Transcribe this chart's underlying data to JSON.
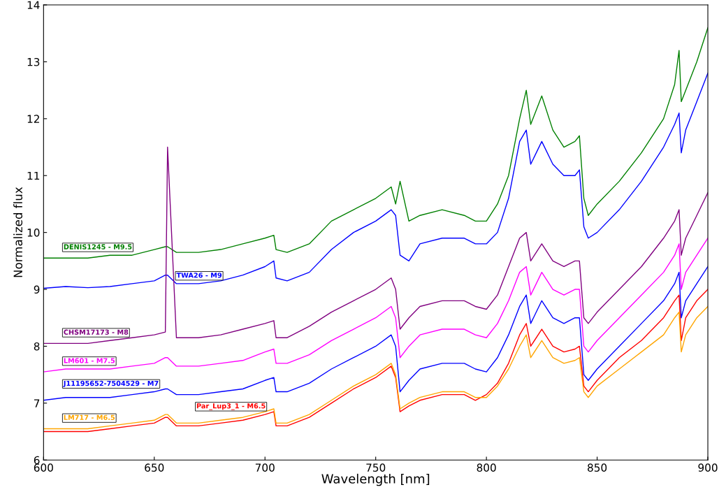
{
  "chart_data": {
    "type": "line",
    "xlabel": "Wavelength [nm]",
    "ylabel": "Normalized flux",
    "x": [
      600,
      610,
      620,
      630,
      640,
      650,
      655,
      656,
      660,
      670,
      680,
      690,
      700,
      704,
      705,
      710,
      720,
      730,
      740,
      750,
      757,
      759,
      761,
      765,
      770,
      780,
      790,
      795,
      800,
      805,
      810,
      815,
      818,
      820,
      825,
      830,
      835,
      840,
      842,
      844,
      846,
      850,
      860,
      870,
      880,
      885,
      887,
      888,
      890,
      895,
      900
    ],
    "xlim": [
      600,
      900
    ],
    "ylim": [
      6,
      14
    ],
    "xticks": [
      600,
      650,
      700,
      750,
      800,
      850,
      900
    ],
    "yticks": [
      6,
      7,
      8,
      9,
      10,
      11,
      12,
      13,
      14
    ],
    "grid": false,
    "legend": false,
    "marker": "none",
    "line_style": "solid",
    "series": [
      {
        "name": "DENIS1245 - M9.5",
        "color": "#008000",
        "values": [
          9.55,
          9.55,
          9.55,
          9.6,
          9.6,
          9.7,
          9.75,
          9.75,
          9.65,
          9.65,
          9.7,
          9.8,
          9.9,
          9.95,
          9.7,
          9.65,
          9.8,
          10.2,
          10.4,
          10.6,
          10.8,
          10.5,
          10.9,
          10.2,
          10.3,
          10.4,
          10.3,
          10.2,
          10.2,
          10.5,
          11.0,
          12.0,
          12.5,
          11.9,
          12.4,
          11.8,
          11.5,
          11.6,
          11.7,
          10.6,
          10.3,
          10.5,
          10.9,
          11.4,
          12.0,
          12.6,
          13.2,
          12.3,
          12.5,
          13.0,
          13.6
        ]
      },
      {
        "name": "TWA26 - M9",
        "color": "#0000ff",
        "values": [
          9.02,
          9.05,
          9.03,
          9.05,
          9.1,
          9.15,
          9.25,
          9.25,
          9.1,
          9.1,
          9.15,
          9.25,
          9.4,
          9.5,
          9.2,
          9.15,
          9.3,
          9.7,
          10.0,
          10.2,
          10.4,
          10.3,
          9.6,
          9.5,
          9.8,
          9.9,
          9.9,
          9.8,
          9.8,
          10.0,
          10.6,
          11.6,
          11.8,
          11.2,
          11.6,
          11.2,
          11.0,
          11.0,
          11.1,
          10.1,
          9.9,
          10.0,
          10.4,
          10.9,
          11.5,
          11.9,
          12.1,
          11.4,
          11.8,
          12.3,
          12.8
        ]
      },
      {
        "name": "CHSM17173 - M8",
        "color": "#800080",
        "values": [
          8.05,
          8.05,
          8.05,
          8.1,
          8.15,
          8.2,
          8.25,
          11.5,
          8.15,
          8.15,
          8.2,
          8.3,
          8.4,
          8.45,
          8.15,
          8.15,
          8.35,
          8.6,
          8.8,
          9.0,
          9.2,
          9.0,
          8.3,
          8.5,
          8.7,
          8.8,
          8.8,
          8.7,
          8.65,
          8.9,
          9.4,
          9.9,
          10.0,
          9.5,
          9.8,
          9.5,
          9.4,
          9.5,
          9.5,
          8.5,
          8.4,
          8.6,
          9.0,
          9.4,
          9.9,
          10.2,
          10.4,
          9.6,
          9.9,
          10.3,
          10.7
        ]
      },
      {
        "name": "LM601 - M7.5",
        "color": "#ff00ff",
        "values": [
          7.55,
          7.6,
          7.6,
          7.6,
          7.65,
          7.7,
          7.8,
          7.8,
          7.65,
          7.65,
          7.7,
          7.75,
          7.9,
          7.95,
          7.7,
          7.7,
          7.85,
          8.1,
          8.3,
          8.5,
          8.7,
          8.5,
          7.8,
          8.0,
          8.2,
          8.3,
          8.3,
          8.2,
          8.15,
          8.4,
          8.8,
          9.3,
          9.4,
          8.9,
          9.3,
          9.0,
          8.9,
          9.0,
          9.0,
          8.0,
          7.9,
          8.1,
          8.5,
          8.9,
          9.3,
          9.6,
          9.8,
          9.0,
          9.3,
          9.6,
          9.9
        ]
      },
      {
        "name": "J11195652-7504529 - M7",
        "color": "#0000ff",
        "values": [
          7.05,
          7.1,
          7.1,
          7.1,
          7.15,
          7.2,
          7.25,
          7.25,
          7.15,
          7.15,
          7.2,
          7.25,
          7.4,
          7.45,
          7.2,
          7.2,
          7.35,
          7.6,
          7.8,
          8.0,
          8.2,
          8.0,
          7.2,
          7.4,
          7.6,
          7.7,
          7.7,
          7.6,
          7.55,
          7.8,
          8.2,
          8.7,
          8.9,
          8.4,
          8.8,
          8.5,
          8.4,
          8.5,
          8.5,
          7.5,
          7.4,
          7.6,
          8.0,
          8.4,
          8.8,
          9.1,
          9.3,
          8.5,
          8.8,
          9.1,
          9.4
        ]
      },
      {
        "name": "Par_Lup3_1 - M6.5",
        "color": "#ff0000",
        "values": [
          6.5,
          6.5,
          6.5,
          6.55,
          6.6,
          6.65,
          6.75,
          6.75,
          6.6,
          6.6,
          6.65,
          6.7,
          6.8,
          6.85,
          6.6,
          6.6,
          6.75,
          7.0,
          7.25,
          7.45,
          7.65,
          7.45,
          6.85,
          6.95,
          7.05,
          7.15,
          7.15,
          7.05,
          7.15,
          7.35,
          7.7,
          8.2,
          8.4,
          8.0,
          8.3,
          8.0,
          7.9,
          7.95,
          8.0,
          7.3,
          7.2,
          7.4,
          7.8,
          8.1,
          8.5,
          8.8,
          8.9,
          8.1,
          8.5,
          8.8,
          9.0
        ]
      },
      {
        "name": "LM717 - M6.5",
        "color": "#ffa500",
        "values": [
          6.55,
          6.55,
          6.55,
          6.6,
          6.65,
          6.7,
          6.8,
          6.8,
          6.65,
          6.65,
          6.7,
          6.75,
          6.85,
          6.9,
          6.65,
          6.65,
          6.8,
          7.05,
          7.3,
          7.5,
          7.7,
          7.5,
          6.9,
          7.0,
          7.1,
          7.2,
          7.2,
          7.1,
          7.1,
          7.3,
          7.6,
          8.0,
          8.2,
          7.8,
          8.1,
          7.8,
          7.7,
          7.75,
          7.8,
          7.2,
          7.1,
          7.3,
          7.6,
          7.9,
          8.2,
          8.5,
          8.6,
          7.9,
          8.2,
          8.5,
          8.7
        ]
      }
    ]
  }
}
